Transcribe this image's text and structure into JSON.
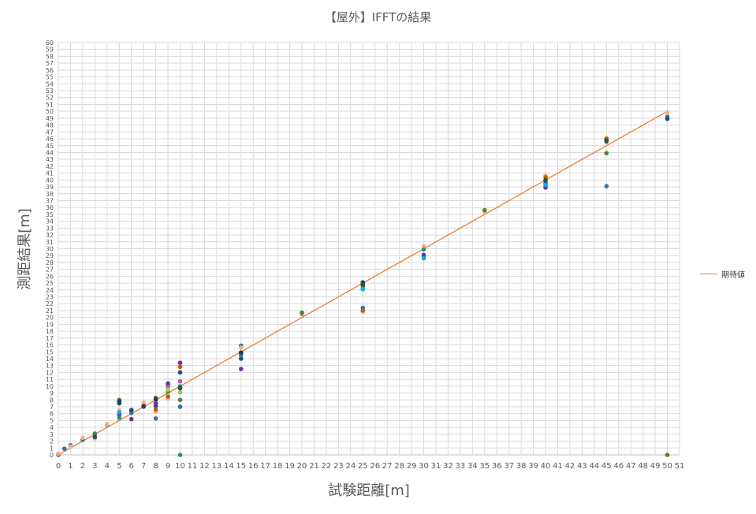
{
  "chart_data": {
    "type": "scatter",
    "title": "【屋外】IFFTの結果",
    "xlabel": "試験距離[m]",
    "ylabel": "測距結果[m]",
    "xlim": [
      0,
      51
    ],
    "ylim": [
      0,
      60
    ],
    "x_ticks_step": 1,
    "y_ticks_step": 1,
    "grid": true,
    "legend_position": "right",
    "line_series": {
      "name": "期待値",
      "color": "#ED7D31",
      "points": [
        [
          0,
          0
        ],
        [
          50,
          50
        ]
      ]
    },
    "scatter_series": [
      {
        "color": "#2E75B6",
        "points": [
          [
            0,
            0
          ],
          [
            0.5,
            0.9
          ],
          [
            1,
            1.4
          ],
          [
            2,
            2.2
          ],
          [
            3,
            3.1
          ],
          [
            4,
            4.4
          ],
          [
            5,
            5.8
          ],
          [
            6,
            6.1
          ],
          [
            7,
            7.0
          ],
          [
            8,
            5.3
          ],
          [
            9,
            8.4
          ],
          [
            10,
            7.0
          ],
          [
            15,
            15.9
          ],
          [
            20,
            20.5
          ],
          [
            25,
            21.4
          ],
          [
            30,
            28.9
          ],
          [
            35,
            35.6
          ],
          [
            40,
            39.2
          ],
          [
            45,
            39.1
          ],
          [
            50,
            49.2
          ]
        ]
      },
      {
        "color": "#F4B183",
        "points": [
          [
            0,
            0.2
          ],
          [
            1,
            1.2
          ],
          [
            2,
            2.5
          ],
          [
            3,
            2.4
          ],
          [
            4,
            4.5
          ],
          [
            5,
            6.5
          ],
          [
            6,
            6.6
          ],
          [
            7,
            7.6
          ],
          [
            8,
            6.3
          ],
          [
            9,
            8.2
          ],
          [
            10,
            13.0
          ],
          [
            15,
            15.6
          ],
          [
            20,
            20.6
          ],
          [
            25,
            20.8
          ],
          [
            30,
            30.4
          ],
          [
            35,
            35.4
          ],
          [
            40,
            40.6
          ],
          [
            45,
            46.1
          ],
          [
            50,
            49.8
          ]
        ]
      },
      {
        "color": "#548235",
        "points": [
          [
            3,
            3.0
          ],
          [
            5,
            8.0
          ],
          [
            8,
            8.3
          ],
          [
            9,
            9.2
          ],
          [
            10,
            8.0
          ],
          [
            15,
            14.8
          ],
          [
            20,
            20.7
          ],
          [
            25,
            24.9
          ],
          [
            35,
            35.6
          ],
          [
            40,
            39.8
          ],
          [
            45,
            43.9
          ],
          [
            50,
            0
          ]
        ]
      },
      {
        "color": "#1F4E79",
        "points": [
          [
            3,
            2.6
          ],
          [
            5,
            7.5
          ],
          [
            6,
            6.5
          ],
          [
            8,
            7.1
          ],
          [
            9,
            10.2
          ],
          [
            10,
            12.0
          ],
          [
            15,
            14.0
          ],
          [
            25,
            24.6
          ],
          [
            40,
            39.5
          ],
          [
            45,
            45.6
          ],
          [
            50,
            48.9
          ]
        ]
      },
      {
        "color": "#7030A0",
        "points": [
          [
            5,
            6.0
          ],
          [
            6,
            5.2
          ],
          [
            8,
            7.5
          ],
          [
            9,
            10.4
          ],
          [
            10,
            13.4
          ],
          [
            15,
            12.5
          ],
          [
            30,
            29.1
          ],
          [
            40,
            38.9
          ]
        ]
      },
      {
        "color": "#2E8B8B",
        "points": [
          [
            5,
            5.4
          ],
          [
            8,
            8.0
          ],
          [
            10,
            0
          ],
          [
            15,
            14.5
          ],
          [
            25,
            24.2
          ],
          [
            30,
            29.9
          ]
        ]
      },
      {
        "color": "#D04DB0",
        "points": [
          [
            9,
            9.9
          ],
          [
            10,
            10.7
          ]
        ]
      },
      {
        "color": "#92D050",
        "points": [
          [
            9,
            9.5
          ],
          [
            10,
            9.1
          ]
        ]
      },
      {
        "color": "#203864",
        "points": [
          [
            5,
            7.8
          ],
          [
            7,
            7.1
          ],
          [
            8,
            8.1
          ],
          [
            10,
            9.7
          ],
          [
            15,
            14.9
          ],
          [
            25,
            25.1
          ]
        ]
      },
      {
        "color": "#00B0F0",
        "points": [
          [
            5,
            6.2
          ],
          [
            10,
            10.0
          ],
          [
            25,
            24.1
          ],
          [
            30,
            28.6
          ],
          [
            40,
            39.3
          ]
        ]
      },
      {
        "color": "#C55A11",
        "points": [
          [
            8,
            6.6
          ],
          [
            9,
            8.5
          ],
          [
            10,
            12.8
          ],
          [
            25,
            21.0
          ],
          [
            40,
            40.4
          ],
          [
            45,
            46.0
          ]
        ]
      },
      {
        "color": "#375623",
        "points": [
          [
            10,
            9.8
          ],
          [
            25,
            24.8
          ],
          [
            40,
            40.0
          ],
          [
            45,
            45.8
          ]
        ]
      }
    ]
  }
}
